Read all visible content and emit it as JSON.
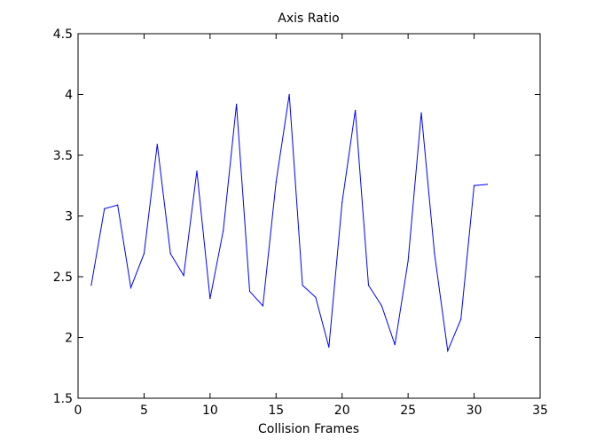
{
  "chart_data": {
    "type": "line",
    "title": "Axis Ratio",
    "xlabel": "Collision Frames",
    "ylabel": "",
    "xlim": [
      0,
      35
    ],
    "ylim": [
      1.5,
      4.5
    ],
    "xticks": [
      0,
      5,
      10,
      15,
      20,
      25,
      30,
      35
    ],
    "yticks": [
      1.5,
      2,
      2.5,
      3,
      3.5,
      4,
      4.5
    ],
    "xtick_labels": [
      "0",
      "5",
      "10",
      "15",
      "20",
      "25",
      "30",
      "35"
    ],
    "ytick_labels": [
      "1.5",
      "2",
      "2.5",
      "3",
      "3.5",
      "4",
      "4.5"
    ],
    "grid": false,
    "series": [
      {
        "color": "#0000ff",
        "x": [
          1,
          2,
          3,
          4,
          5,
          6,
          7,
          8,
          9,
          10,
          11,
          12,
          13,
          14,
          15,
          16,
          17,
          18,
          19,
          20,
          21,
          22,
          23,
          24,
          25,
          26,
          27,
          28,
          29,
          30,
          31
        ],
        "values": [
          2.43,
          3.06,
          3.09,
          2.41,
          2.69,
          3.59,
          2.69,
          2.51,
          3.37,
          2.32,
          2.88,
          3.92,
          2.38,
          2.26,
          3.28,
          4.0,
          2.43,
          2.33,
          1.92,
          3.11,
          3.87,
          2.43,
          2.26,
          1.94,
          2.63,
          3.85,
          2.69,
          1.89,
          2.15,
          3.25,
          3.26
        ]
      }
    ]
  }
}
